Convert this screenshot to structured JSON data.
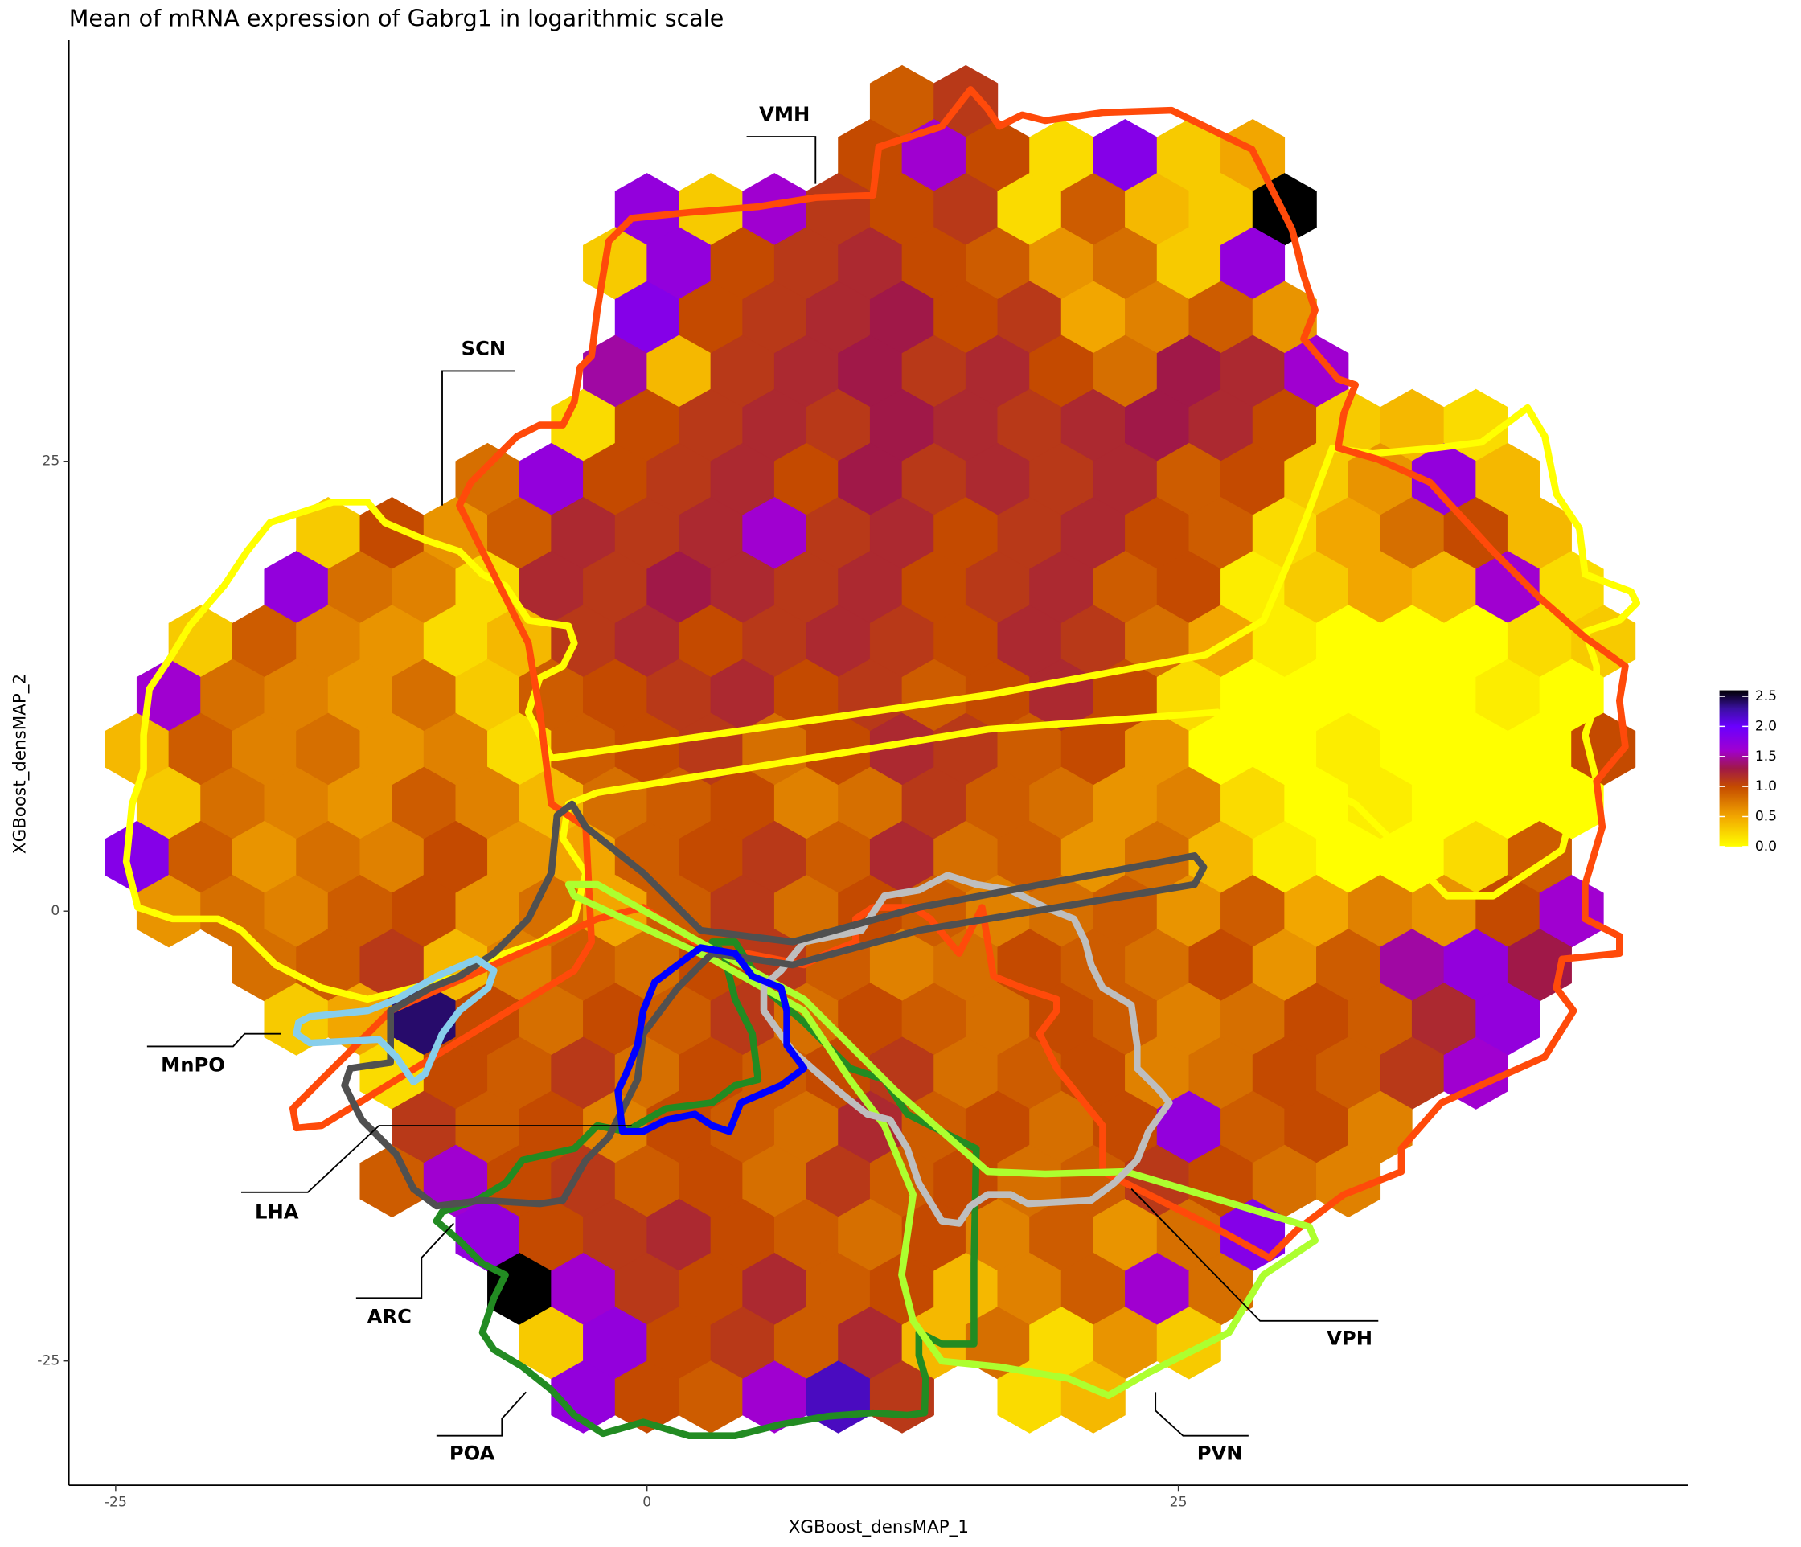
{
  "chart_data": {
    "type": "hexbin",
    "title": "Mean of mRNA expression of Gabrg1 in logarithmic scale",
    "x_label": "XGBoost_densMAP_1",
    "y_label": "XGBoost_densMAP_2",
    "xlim": [
      -27.2,
      49.0
    ],
    "ylim": [
      -31.9,
      48.4
    ],
    "xticks": [
      -25,
      0,
      25
    ],
    "yticks": [
      -25,
      0,
      25
    ],
    "grid": false,
    "binwidth": 3,
    "rows": [
      {
        "y": 45,
        "x_start": 12,
        "values": [
          0.9,
          1.1
        ]
      },
      {
        "y": 42,
        "x_start": 10.5,
        "values": [
          1.0,
          1.6,
          1.0,
          0.2,
          1.8,
          0.3,
          0.5
        ]
      },
      {
        "y": 39,
        "x_start": 0,
        "values": [
          1.7,
          0.3,
          1.6,
          1.1,
          1.0,
          1.1,
          0.2,
          0.9,
          0.4,
          0.3,
          2.6
        ]
      },
      {
        "y": 36,
        "x_start": -1.5,
        "values": [
          0.3,
          1.7,
          1.0,
          1.1,
          1.2,
          1.0,
          0.9,
          0.6,
          0.8,
          0.3,
          1.7
        ]
      },
      {
        "y": 33,
        "x_start": 0,
        "values": [
          1.8,
          1.0,
          1.1,
          1.2,
          1.3,
          1.0,
          1.1,
          0.5,
          0.7,
          0.9,
          0.6
        ]
      },
      {
        "y": 30,
        "x_start": -1.5,
        "values": [
          1.5,
          0.4,
          1.1,
          1.2,
          1.3,
          1.1,
          1.2,
          1.0,
          0.8,
          1.3,
          1.2,
          1.6
        ]
      },
      {
        "y": 27,
        "x_start": -3,
        "values": [
          0.2,
          1.0,
          1.1,
          1.2,
          1.1,
          1.3,
          1.2,
          1.1,
          1.2,
          1.3,
          1.2,
          1.0,
          0.3,
          0.4,
          0.2
        ]
      },
      {
        "y": 24,
        "x_start": -7.5,
        "values": [
          0.8,
          1.7,
          1.0,
          1.1,
          1.2,
          1.0,
          1.3,
          1.1,
          1.2,
          1.1,
          1.2,
          0.9,
          1.0,
          0.3,
          0.6,
          1.7,
          0.4
        ]
      },
      {
        "y": 21,
        "x_start": -15,
        "values": [
          0.3,
          1.0,
          0.6,
          0.9,
          1.2,
          1.1,
          1.2,
          1.6,
          1.1,
          1.2,
          1.0,
          1.1,
          1.2,
          1.0,
          0.9,
          0.2,
          0.5,
          0.8,
          1.0,
          0.4
        ]
      },
      {
        "y": 18,
        "x_start": -16.5,
        "values": [
          1.7,
          0.8,
          0.7,
          0.2,
          1.2,
          1.1,
          1.3,
          1.2,
          1.1,
          1.2,
          1.0,
          1.1,
          1.2,
          0.9,
          1.0,
          0.1,
          0.3,
          0.5,
          0.4,
          1.6,
          0.2
        ]
      },
      {
        "y": 15,
        "x_start": -21,
        "values": [
          0.3,
          0.9,
          0.7,
          0.6,
          0.2,
          0.4,
          1.1,
          1.2,
          1.0,
          1.1,
          1.2,
          1.1,
          1.0,
          1.2,
          1.1,
          0.8,
          0.5,
          0.1,
          0.0,
          0.0,
          0.0,
          0.2,
          0.3
        ]
      },
      {
        "y": 12,
        "x_start": -22.5,
        "values": [
          1.6,
          0.8,
          0.7,
          0.6,
          0.8,
          0.3,
          0.9,
          1.0,
          1.1,
          1.2,
          1.0,
          1.1,
          0.9,
          1.0,
          1.2,
          1.0,
          0.2,
          0.0,
          0.0,
          0.0,
          0.0,
          0.1,
          0.0
        ]
      },
      {
        "y": 9,
        "x_start": -24,
        "values": [
          0.4,
          0.9,
          0.7,
          0.8,
          0.6,
          0.7,
          0.2,
          0.9,
          1.0,
          1.1,
          0.8,
          1.0,
          1.2,
          1.1,
          0.9,
          1.0,
          0.6,
          0.0,
          0.0,
          0.1,
          0.0,
          0.0,
          0.0,
          1.0
        ]
      },
      {
        "y": 6,
        "x_start": -22.5,
        "values": [
          0.3,
          0.8,
          0.7,
          0.6,
          0.9,
          0.7,
          0.4,
          0.8,
          0.9,
          1.0,
          0.7,
          0.8,
          1.1,
          0.9,
          0.8,
          0.6,
          0.7,
          0.2,
          0.0,
          0.1,
          0.0,
          0.0,
          0.0
        ]
      },
      {
        "y": 3,
        "x_start": -24,
        "values": [
          1.8,
          0.9,
          0.6,
          0.8,
          0.7,
          1.0,
          0.6,
          0.5,
          0.9,
          1.0,
          1.1,
          0.9,
          1.2,
          0.8,
          0.9,
          0.6,
          0.8,
          0.4,
          0.1,
          0.0,
          0.0,
          0.2,
          0.9
        ]
      },
      {
        "y": 0,
        "x_start": -22.5,
        "values": [
          0.6,
          0.8,
          0.7,
          0.9,
          1.0,
          0.6,
          0.8,
          0.5,
          0.9,
          1.1,
          0.8,
          1.0,
          0.9,
          0.7,
          0.8,
          0.9,
          0.6,
          0.9,
          0.5,
          0.7,
          0.6,
          1.0,
          1.6
        ]
      },
      {
        "y": -3,
        "x_start": -18,
        "values": [
          0.8,
          0.9,
          1.1,
          0.4,
          0.7,
          0.9,
          0.8,
          1.0,
          1.1,
          0.9,
          0.7,
          0.8,
          1.0,
          0.9,
          0.8,
          1.0,
          0.6,
          0.9,
          1.5,
          1.7,
          1.3
        ]
      },
      {
        "y": -6,
        "x_start": -16.5,
        "values": [
          0.3,
          0.5,
          2.4,
          1.0,
          0.8,
          1.0,
          0.9,
          1.1,
          0.8,
          1.0,
          0.9,
          0.8,
          1.0,
          0.9,
          0.7,
          0.8,
          1.0,
          0.9,
          1.2,
          1.7
        ]
      },
      {
        "y": -9,
        "x_start": -12,
        "values": [
          0.2,
          1.0,
          0.9,
          1.1,
          0.8,
          1.0,
          0.9,
          1.0,
          1.1,
          0.8,
          0.9,
          1.0,
          0.7,
          0.8,
          1.0,
          0.9,
          1.1,
          1.6
        ]
      },
      {
        "y": -12,
        "x_start": -10.5,
        "values": [
          1.1,
          0.9,
          1.0,
          0.7,
          1.0,
          0.9,
          0.8,
          1.2,
          0.9,
          1.0,
          0.8,
          1.0,
          1.7,
          0.9,
          1.0,
          0.7
        ]
      },
      {
        "y": -15,
        "x_start": -12,
        "values": [
          0.9,
          1.6,
          1.0,
          1.1,
          0.9,
          1.0,
          0.8,
          1.1,
          0.9,
          1.0,
          0.8,
          0.9,
          1.1,
          1.0,
          0.8,
          0.7
        ]
      },
      {
        "y": -18,
        "x_start": -7.5,
        "values": [
          1.7,
          1.0,
          1.1,
          1.2,
          1.0,
          0.9,
          0.8,
          1.0,
          0.7,
          0.9,
          0.6,
          0.8,
          1.8
        ]
      },
      {
        "y": -21,
        "x_start": -6,
        "values": [
          2.6,
          1.6,
          1.1,
          1.0,
          1.2,
          0.9,
          1.0,
          0.4,
          0.7,
          0.9,
          1.6,
          0.8
        ]
      },
      {
        "y": -24,
        "x_start": -4.5,
        "values": [
          0.3,
          1.7,
          1.0,
          1.1,
          0.9,
          1.2,
          0.4,
          0.8,
          0.2,
          0.6,
          0.3
        ]
      },
      {
        "y": -27,
        "x_start": -3,
        "values": [
          1.7,
          1.0,
          0.9,
          1.6,
          2.2,
          1.1,
          null,
          0.2,
          0.4
        ]
      }
    ],
    "colorbar": {
      "lim": [
        0,
        2.6
      ],
      "ticks": [
        {
          "value": 0,
          "label": "0.0"
        },
        0.5,
        {
          "value": 1,
          "label": "1.0"
        },
        1.5,
        {
          "value": 2,
          "label": "2.0"
        },
        2.5
      ],
      "color_stops": [
        [
          0,
          "#ffff00"
        ],
        [
          0.5,
          "#f2a600"
        ],
        [
          1.0,
          "#c44a00"
        ],
        [
          1.3,
          "#a01848"
        ],
        [
          1.6,
          "#a000d0"
        ],
        [
          2.0,
          "#6a00ff"
        ],
        [
          2.3,
          "#3a10a0"
        ],
        [
          2.6,
          "#000000"
        ]
      ]
    },
    "annotations": [
      "VMH",
      "SCN",
      "MnPO",
      "LHA",
      "ARC",
      "POA",
      "PVN",
      "VPH"
    ]
  }
}
